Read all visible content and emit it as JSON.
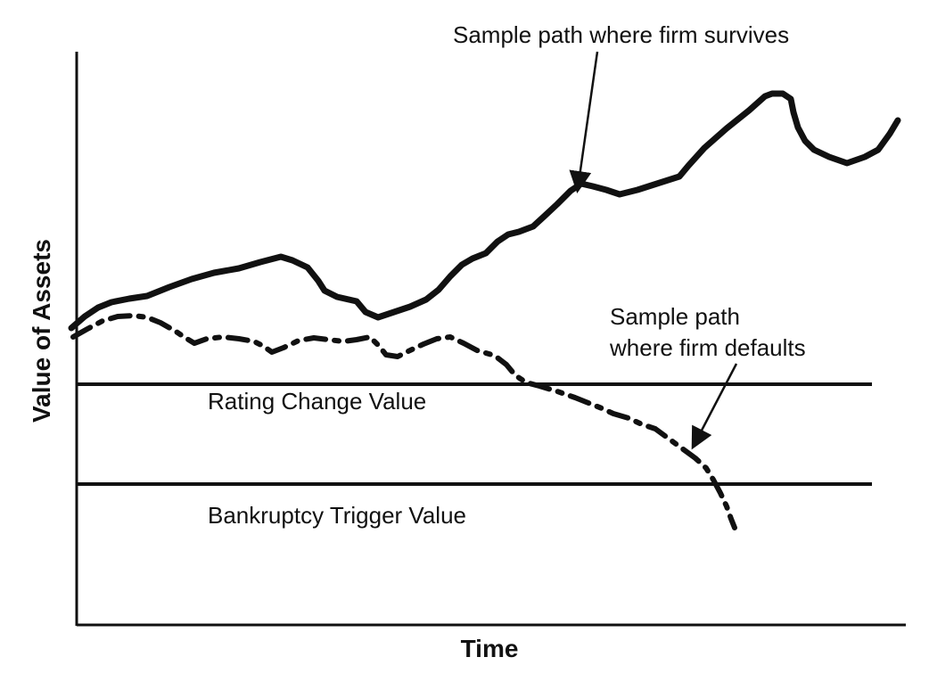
{
  "axes": {
    "xlabel": "Time",
    "ylabel": "Value of Assets"
  },
  "levels": {
    "rating_change": "Rating Change Value",
    "bankruptcy_trigger": "Bankruptcy Trigger Value"
  },
  "annotations": {
    "survives": "Sample path where firm survives",
    "defaults_line1": "Sample path",
    "defaults_line2": "where firm defaults"
  },
  "colors": {
    "ink": "#111111",
    "background": "#ffffff"
  }
}
